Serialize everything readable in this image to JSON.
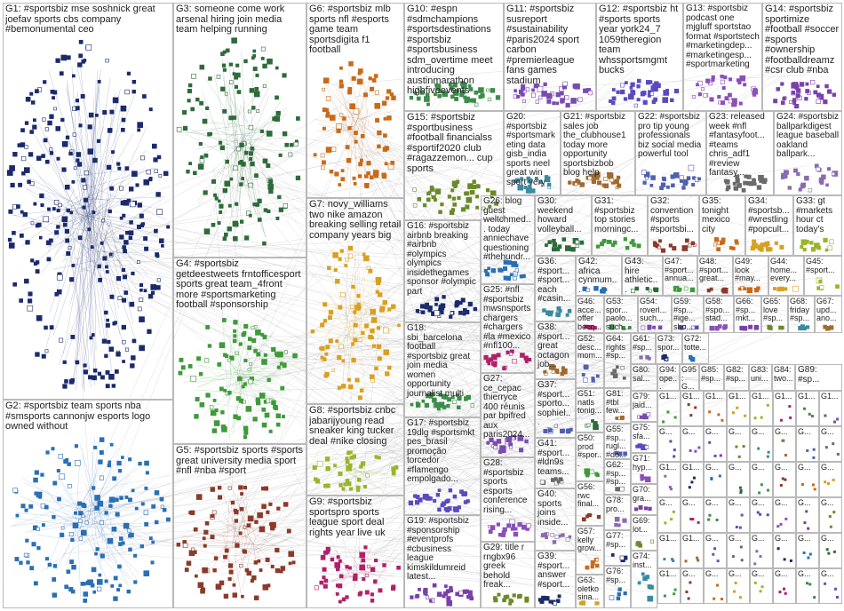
{
  "groups": [
    {
      "label": "G1: #sportsbiz mse soshnick great joefav sports cbs company #bemonumental ceo"
    },
    {
      "label": "G2: #sportsbiz team sports nba #smsports cannonjw esports logo owned without"
    },
    {
      "label": "G3: someone come work arsenal hiring join media team helping running"
    },
    {
      "label": "G4: #sportsbiz getdeestweets frntofficesport sports great team_4front more #sportsmarketing football #sponsorship"
    },
    {
      "label": "G5: #sportsbiz sports #sports great university media sport #nfl #nba #sport"
    },
    {
      "label": "G6: #sportsbiz mlb sports nfl #esports game team sportsdigita f1 football"
    },
    {
      "label": "G7: novy_williams two nike amazon breaking selling retail company years big"
    },
    {
      "label": "G8: #sportsbiz cnbc jabarijyoung read sneaker king tucker deal #nike closing"
    },
    {
      "label": "G9: #sportsbiz sportspro sports league sport deal rights year live uk"
    },
    {
      "label": "G10: #espn #sdmchampions #sportsdestinations #sportsbiz #sportsbusiness sdm_overtime meet introducing austinmarathon highfiveevents"
    },
    {
      "label": "G11: #sportsbiz susreport #sustainability #paris2024 sport carbon #premierleague fans games stadium"
    },
    {
      "label": "G12: #sportsbiz ht #sports sports year york24_7 1059theregion team whssportsmgmt bucks"
    },
    {
      "label": "G13: #sportsbiz podcast one mjgluff sportstao format #sportstech #marketingdep... #marketingesp... #sportmarketing"
    },
    {
      "label": "G14: #sportsbiz sportimize #football #soccer #sports #ownership #footballdreamz #csr club #nba"
    },
    {
      "label": "G15: #sportsbiz #sportbusiness #football financialss #sportif2020 club #ragazzemon... cup sports"
    },
    {
      "label": "G20: #sportsbiz #sportsmarketing data gisb_india sports neel great win sport very"
    },
    {
      "label": "G21: #sportsbiz sales job the_clubhouse1 today more opportunity sportsbizbob blog help"
    },
    {
      "label": "G22: #sportsbiz pro tip young professionals biz social media powerful tool"
    },
    {
      "label": "G23: released week #nfl #fantasyfoot... #teams chris_adf1 #review fantasy..."
    },
    {
      "label": "G24: #sportsbiz ballparkdigest league baseball oakland ballpark..."
    },
    {
      "label": "G16: #sportsbiz airbnb breaking #airbnb #olympics olympics insidethegames sponsor #olympic part"
    },
    {
      "label": "G26: blog guest weltchmed... today anniechave questioning #thehundr..."
    },
    {
      "label": "G30: weekend howard volleyball..."
    },
    {
      "label": "G31: #sportsbiz top stories morningc..."
    },
    {
      "label": "G32: convention #sports #sportsbi..."
    },
    {
      "label": "G35: tonight mexico city"
    },
    {
      "label": "G34: #sportsb... #wrestling #popcult..."
    },
    {
      "label": "G33: gt #markets hour ct today's"
    },
    {
      "label": "G25: #nfl #sportsbiz mwsnsports chargers #chargers #la #mexico #nfl100..."
    },
    {
      "label": "G18: sbi_barcelona football #sportsbiz great join media women opportunity journalist multi"
    },
    {
      "label": "G27: ce_cepac thierryce 400 réunis par bpifred aux paris2024..."
    },
    {
      "label": "G17: #sportsbiz 19dlg #sportsmkt pes_brasil promoção torcedor #flamengo empolgado..."
    },
    {
      "label": "G28: #sportsbiz sports esports conference rising..."
    },
    {
      "label": "G19: #sportsbiz #sponsorship #eventprofs #cbusiness league kimskildumreid latest..."
    },
    {
      "label": "G29: title r rngbx96 greek behold freak..."
    },
    {
      "label": "G36: #sport... #sport... each #casin..."
    },
    {
      "label": "G38: #sport... great octagon job..."
    },
    {
      "label": "G37: #sport... sporto... sophiel..."
    },
    {
      "label": "G41: #sport... #ldn9s teams..."
    },
    {
      "label": "G40: sports joins inside..."
    },
    {
      "label": "G39: #sport... answer #sport..."
    },
    {
      "label": "G42: africa cynmum..."
    },
    {
      "label": "G43: hire athletic..."
    },
    {
      "label": "G47: #sport... annua..."
    },
    {
      "label": "G48: #sport... great..."
    },
    {
      "label": "G49: look #may..."
    },
    {
      "label": "G44: home... every..."
    },
    {
      "label": "G45: #sport..."
    },
    {
      "label": "G46: acce... offer becq..."
    },
    {
      "label": "G53: spor... paolo... such..."
    },
    {
      "label": "G54: roverl... such..."
    },
    {
      "label": "G59: #sp... #ige... sho..."
    },
    {
      "label": "G58: #spo... stad..."
    },
    {
      "label": "G66: #sp... mkt..."
    },
    {
      "label": "G65: love #sp..."
    },
    {
      "label": "G68: friday #sp..."
    },
    {
      "label": "G67: upd... ano..."
    },
    {
      "label": "G52: desc... mom..."
    },
    {
      "label": "G64: rights #sp..."
    },
    {
      "label": "G61: #sp..."
    },
    {
      "label": "G73: spor..."
    },
    {
      "label": "G72: totte..."
    },
    {
      "label": "G80: sal..."
    },
    {
      "label": "G94: ope..."
    },
    {
      "label": "G95: G..."
    },
    {
      "label": "G85: #sp..."
    },
    {
      "label": "G82: #sp..."
    },
    {
      "label": "G83: uni..."
    },
    {
      "label": "G84: two..."
    },
    {
      "label": "G89: #sp..."
    },
    {
      "label": "G79: jaid..."
    },
    {
      "label": "G75: sfa..."
    },
    {
      "label": "G71: hyp..."
    },
    {
      "label": "G70: gra..."
    },
    {
      "label": "G69: lot..."
    },
    {
      "label": "G74: inst..."
    },
    {
      "label": "G81: #tbl few..."
    },
    {
      "label": "G55: #sp... rugl... #do..."
    },
    {
      "label": "G62: #sp... #sp..."
    },
    {
      "label": "G78: pro..."
    },
    {
      "label": "G77: #sp..."
    },
    {
      "label": "G76: #sp..."
    },
    {
      "label": "G51: natls tonig..."
    },
    {
      "label": "G50: prod #spor..."
    },
    {
      "label": "G56: rwc final..."
    },
    {
      "label": "G57: kelly grow..."
    },
    {
      "label": "G63: oletko sina..."
    }
  ],
  "small_groups": [
    "G1...",
    "G1...",
    "G1...",
    "G1...",
    "G1...",
    "G1...",
    "G1...",
    "G1...",
    "G...",
    "G...",
    "G...",
    "G...",
    "G...",
    "G...",
    "G...",
    "G...",
    "G1...",
    "G1...",
    "G...",
    "G...",
    "G...",
    "G...",
    "G...",
    "G...",
    "G...",
    "G...",
    "G...",
    "G...",
    "G...",
    "G...",
    "G...",
    "G...",
    "G1...",
    "G1...",
    "G...",
    "G...",
    "G...",
    "G...",
    "G...",
    "G...",
    "G1...",
    "G...",
    "G...",
    "G...",
    "G...",
    "G...",
    "G...",
    "G..."
  ]
}
